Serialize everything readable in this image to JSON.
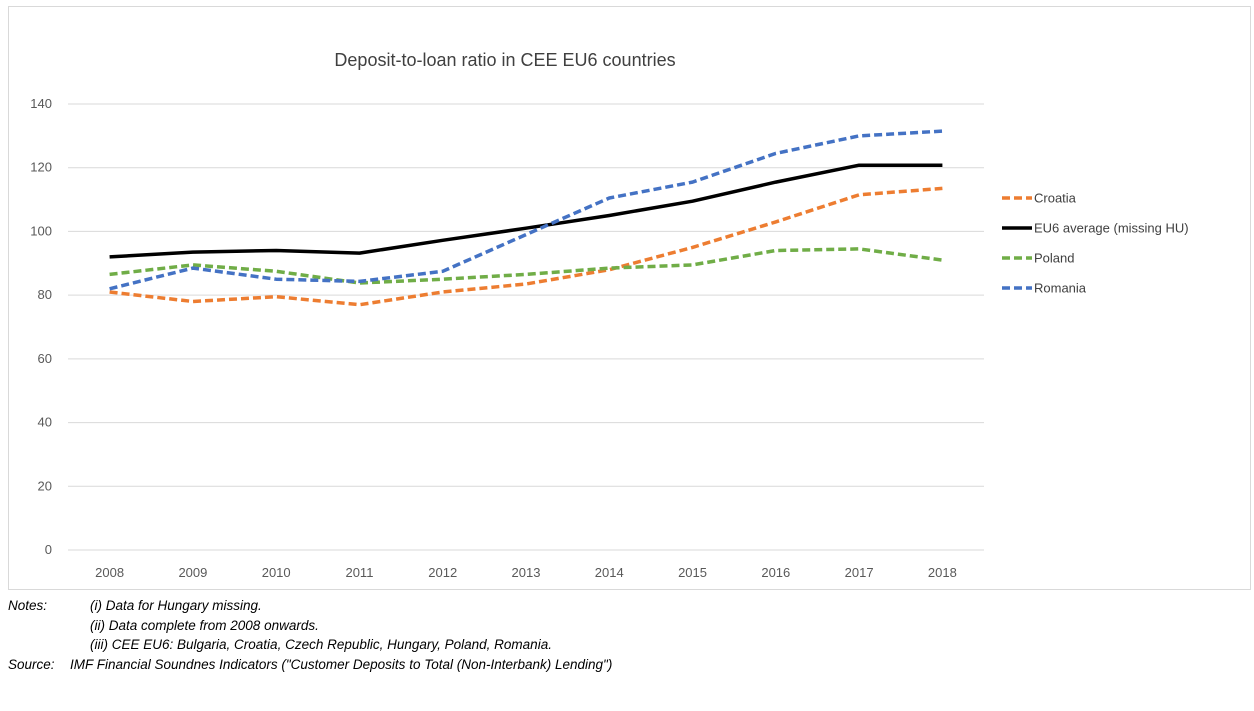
{
  "chart_data": {
    "type": "line",
    "title": "Deposit-to-loan ratio in CEE EU6 countries",
    "xlabel": "",
    "ylabel": "",
    "categories": [
      "2008",
      "2009",
      "2010",
      "2011",
      "2012",
      "2013",
      "2014",
      "2015",
      "2016",
      "2017",
      "2018"
    ],
    "ylim": [
      0,
      140
    ],
    "yticks": [
      0,
      20,
      40,
      60,
      80,
      100,
      120,
      140
    ],
    "grid": true,
    "legend_position": "right",
    "series": [
      {
        "name": "Croatia",
        "color": "#ed7d31",
        "style": "dashed",
        "values": [
          81,
          78,
          79.5,
          77,
          81,
          83.5,
          88,
          95,
          103,
          111.5,
          113.5
        ]
      },
      {
        "name": "EU6 average (missing HU)",
        "color": "#000000",
        "style": "solid",
        "values": [
          92,
          93.5,
          94,
          93.2,
          97.2,
          101,
          105,
          109.5,
          115.5,
          120.8,
          120.8
        ]
      },
      {
        "name": "Poland",
        "color": "#70ad47",
        "style": "dashed",
        "values": [
          86.5,
          89.5,
          87.5,
          83.8,
          85,
          86.5,
          88.5,
          89.5,
          94,
          94.5,
          91
        ]
      },
      {
        "name": "Romania",
        "color": "#4472c4",
        "style": "dashed",
        "values": [
          82,
          88.5,
          85,
          84.3,
          87.5,
          99,
          110.5,
          115.5,
          124.5,
          130,
          131.5
        ]
      }
    ]
  },
  "notes": {
    "label": "Notes:",
    "lines": [
      "(i) Data for Hungary missing.",
      "(ii) Data complete from 2008 onwards.",
      "(iii) CEE EU6: Bulgaria, Croatia, Czech Republic, Hungary, Poland, Romania."
    ]
  },
  "source": {
    "label": "Source:",
    "text": "IMF Financial Soundnes Indicators (\"Customer Deposits to Total (Non-Interbank) Lending\")"
  }
}
